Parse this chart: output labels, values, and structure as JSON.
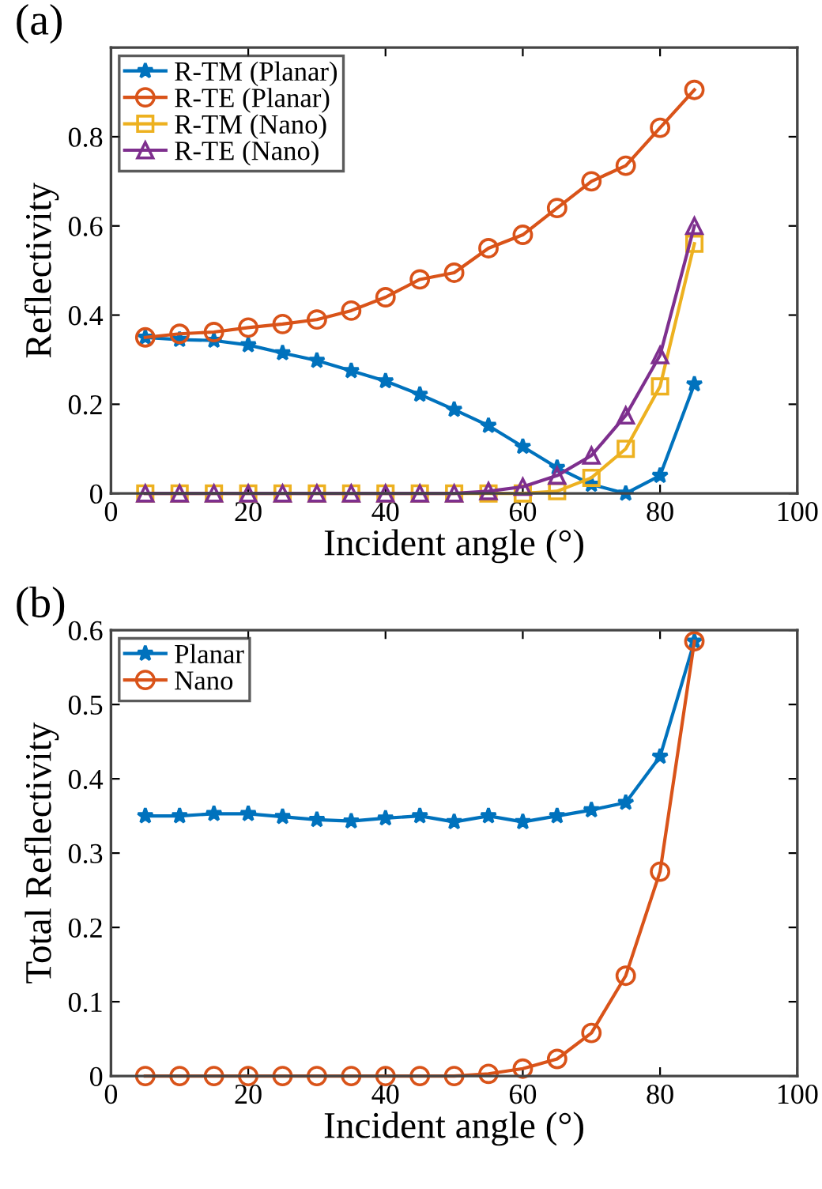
{
  "chart_data": [
    {
      "type": "line",
      "title": "(a)",
      "xlabel": "Incident angle (°)",
      "ylabel": "Reflectivity",
      "x": [
        5,
        10,
        15,
        20,
        25,
        30,
        35,
        40,
        45,
        50,
        55,
        60,
        65,
        70,
        75,
        80,
        85
      ],
      "series": [
        {
          "name": "R-TM (Planar)",
          "color": "#0072bd",
          "marker": "star",
          "values": [
            0.35,
            0.345,
            0.343,
            0.333,
            0.315,
            0.298,
            0.275,
            0.252,
            0.222,
            0.188,
            0.152,
            0.105,
            0.058,
            0.02,
            0.0,
            0.04,
            0.245
          ]
        },
        {
          "name": "R-TE (Planar)",
          "color": "#d95319",
          "marker": "circle",
          "values": [
            0.35,
            0.358,
            0.362,
            0.372,
            0.38,
            0.39,
            0.41,
            0.44,
            0.48,
            0.495,
            0.55,
            0.58,
            0.64,
            0.7,
            0.735,
            0.82,
            0.905
          ]
        },
        {
          "name": "R-TM (Nano)",
          "color": "#edb120",
          "marker": "square",
          "values": [
            0,
            0,
            0,
            0,
            0,
            0,
            0,
            0,
            0,
            0,
            0,
            0,
            0.005,
            0.035,
            0.1,
            0.24,
            0.56
          ]
        },
        {
          "name": "R-TE (Nano)",
          "color": "#7e2f8e",
          "marker": "triangle",
          "values": [
            0,
            0,
            0,
            0,
            0,
            0,
            0,
            0,
            0,
            0,
            0.005,
            0.015,
            0.04,
            0.085,
            0.175,
            0.31,
            0.6
          ]
        }
      ],
      "xlim": [
        0,
        100
      ],
      "xticks": [
        0,
        20,
        40,
        60,
        80,
        100
      ],
      "ylim": [
        0,
        1
      ],
      "yticks": [
        0,
        0.2,
        0.4,
        0.6,
        0.8,
        {
          "value": 1,
          "label": null
        }
      ],
      "grid": false,
      "legend": "top left"
    },
    {
      "type": "line",
      "title": "(b)",
      "xlabel": "Incident angle (°)",
      "ylabel": "Total Reflectivity",
      "x": [
        5,
        10,
        15,
        20,
        25,
        30,
        35,
        40,
        45,
        50,
        55,
        60,
        65,
        70,
        75,
        80,
        85
      ],
      "series": [
        {
          "name": "Planar",
          "color": "#0072bd",
          "marker": "star",
          "values": [
            0.35,
            0.35,
            0.353,
            0.353,
            0.349,
            0.345,
            0.343,
            0.347,
            0.35,
            0.342,
            0.35,
            0.342,
            0.35,
            0.358,
            0.368,
            0.43,
            0.585
          ]
        },
        {
          "name": "Nano",
          "color": "#d95319",
          "marker": "circle",
          "values": [
            0,
            0,
            0,
            0,
            0,
            0,
            0,
            0,
            0,
            0,
            0.003,
            0.01,
            0.023,
            0.058,
            0.135,
            0.275,
            0.585
          ]
        }
      ],
      "xlim": [
        0,
        100
      ],
      "xticks": [
        0,
        20,
        40,
        60,
        80,
        100
      ],
      "ylim": [
        0,
        0.6
      ],
      "yticks": [
        0,
        0.1,
        0.2,
        0.3,
        0.4,
        0.5,
        0.6
      ],
      "grid": false,
      "legend": "top left"
    }
  ]
}
